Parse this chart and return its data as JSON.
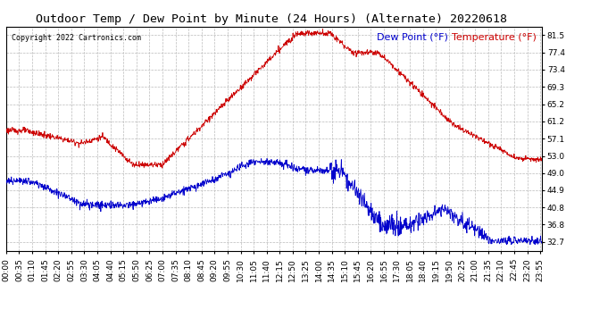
{
  "title": "Outdoor Temp / Dew Point by Minute (24 Hours) (Alternate) 20220618",
  "copyright": "Copyright 2022 Cartronics.com",
  "legend_dew": "Dew Point (°F)",
  "legend_temp": "Temperature (°F)",
  "yticks": [
    32.7,
    36.8,
    40.8,
    44.9,
    49.0,
    53.0,
    57.1,
    61.2,
    65.2,
    69.3,
    73.4,
    77.4,
    81.5
  ],
  "ymin": 30.5,
  "ymax": 83.5,
  "temp_color": "#cc0000",
  "dew_color": "#0000cc",
  "background_color": "#ffffff",
  "grid_color": "#bbbbbb",
  "title_fontsize": 9.5,
  "axis_fontsize": 6.5,
  "copyright_fontsize": 6,
  "legend_fontsize": 8,
  "minutes_per_day": 1440
}
